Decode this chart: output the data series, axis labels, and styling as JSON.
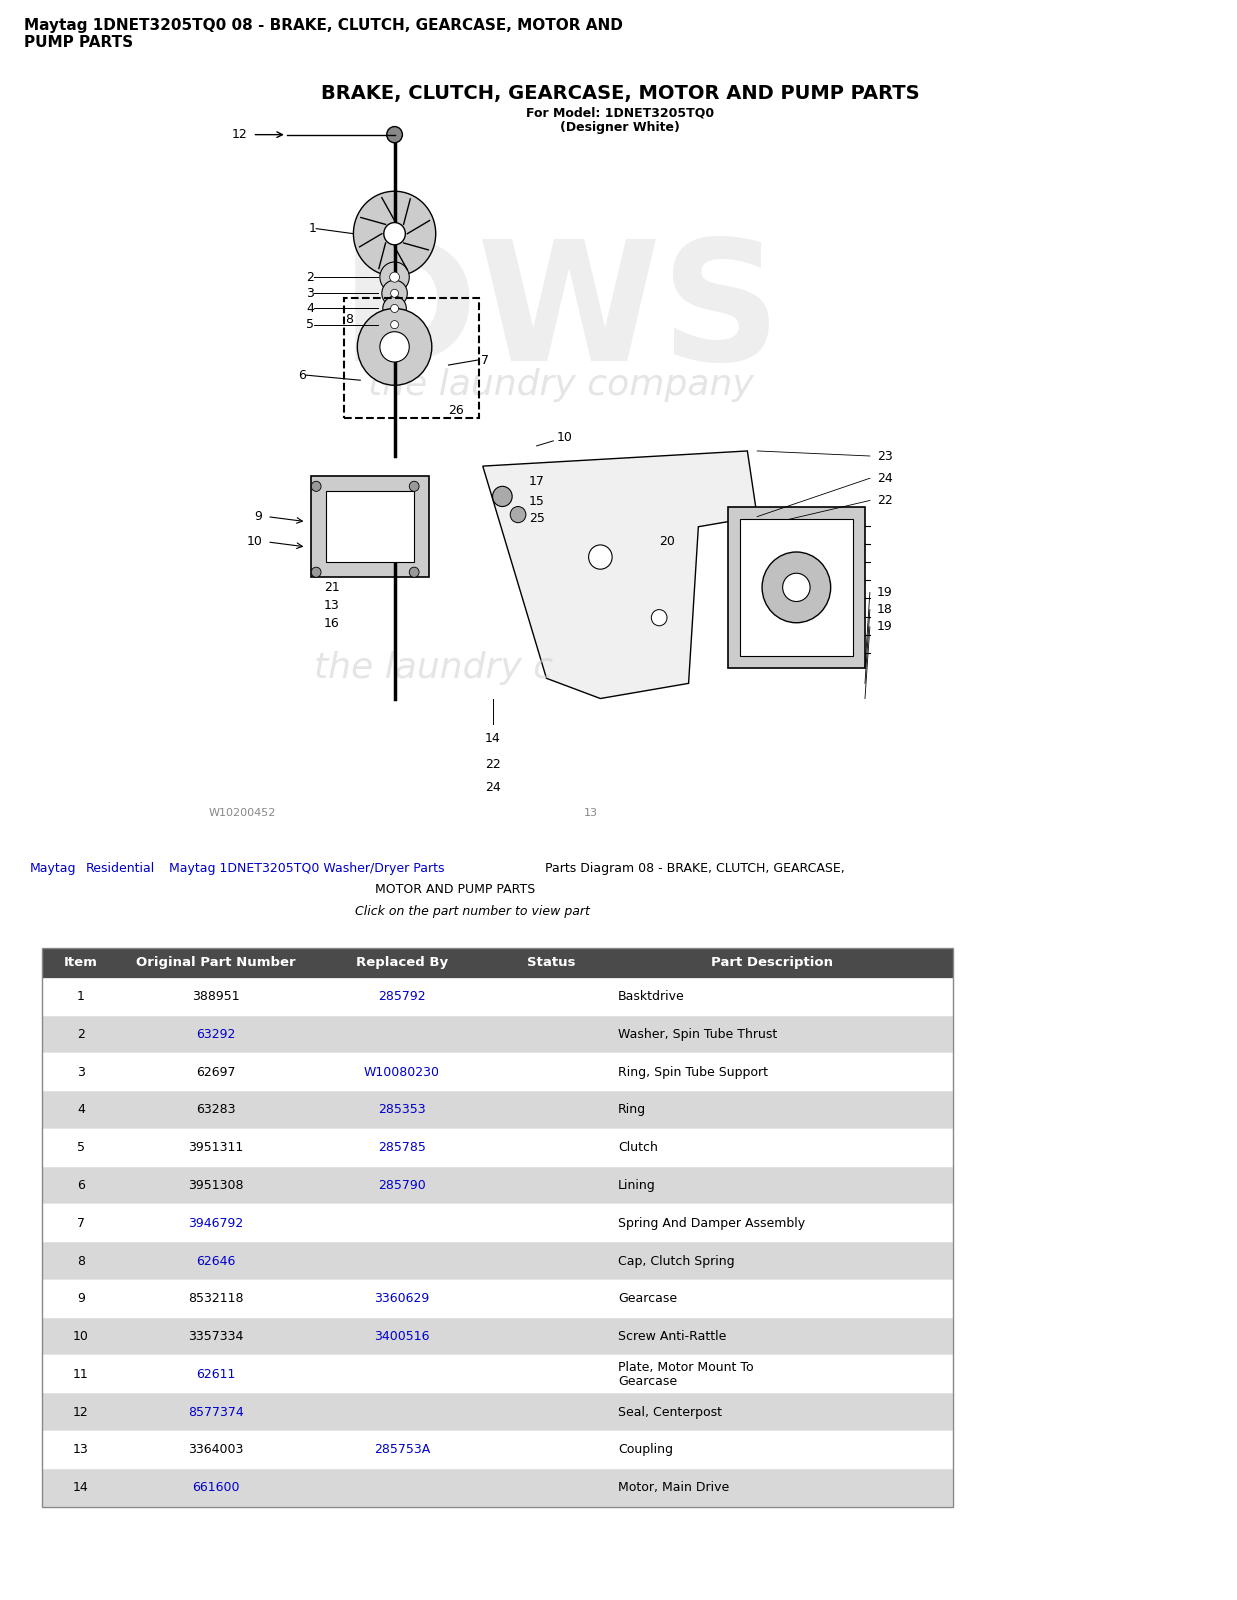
{
  "page_title": "Maytag 1DNET3205TQ0 08 - BRAKE, CLUTCH, GEARCASE, MOTOR AND\nPUMP PARTS",
  "diagram_title": "BRAKE, CLUTCH, GEARCASE, MOTOR AND PUMP PARTS",
  "diagram_subtitle1": "For Model: 1DNET3205TQ0",
  "diagram_subtitle2": "(Designer White)",
  "watermark_line1": "W10200452",
  "watermark_line2": "13",
  "breadcrumb_sub": "Click on the part number to view part",
  "table_headers": [
    "Item",
    "Original Part Number",
    "Replaced By",
    "Status",
    "Part Description"
  ],
  "table_header_bg": "#4a4a4a",
  "table_header_color": "#ffffff",
  "table_row_bg_even": "#ffffff",
  "table_row_bg_odd": "#d8d8d8",
  "table_rows": [
    [
      "1",
      "388951",
      "285792",
      "",
      "Basktdrive"
    ],
    [
      "2",
      "63292",
      "",
      "",
      "Washer, Spin Tube Thrust"
    ],
    [
      "3",
      "62697",
      "W10080230",
      "",
      "Ring, Spin Tube Support"
    ],
    [
      "4",
      "63283",
      "285353",
      "",
      "Ring"
    ],
    [
      "5",
      "3951311",
      "285785",
      "",
      "Clutch"
    ],
    [
      "6",
      "3951308",
      "285790",
      "",
      "Lining"
    ],
    [
      "7",
      "3946792",
      "",
      "",
      "Spring And Damper Assembly"
    ],
    [
      "8",
      "62646",
      "",
      "",
      "Cap, Clutch Spring"
    ],
    [
      "9",
      "8532118",
      "3360629",
      "",
      "Gearcase"
    ],
    [
      "10",
      "3357334",
      "3400516",
      "",
      "Screw Anti-Rattle"
    ],
    [
      "11",
      "62611",
      "",
      "",
      "Plate, Motor Mount To\nGearcase"
    ],
    [
      "12",
      "8577374",
      "",
      "",
      "Seal, Centerpost"
    ],
    [
      "13",
      "3364003",
      "285753A",
      "",
      "Coupling"
    ],
    [
      "14",
      "661600",
      "",
      "",
      "Motor, Main Drive"
    ]
  ],
  "link_color": "#0000cc",
  "link_items_col1": [
    "63292",
    "3946792",
    "62646",
    "62611",
    "8577374",
    "661600"
  ],
  "link_items_col2": [
    "285792",
    "W10080230",
    "285353",
    "285785",
    "285790",
    "3360629",
    "3400516",
    "285753A"
  ],
  "bg_color": "#ffffff",
  "text_color": "#000000"
}
